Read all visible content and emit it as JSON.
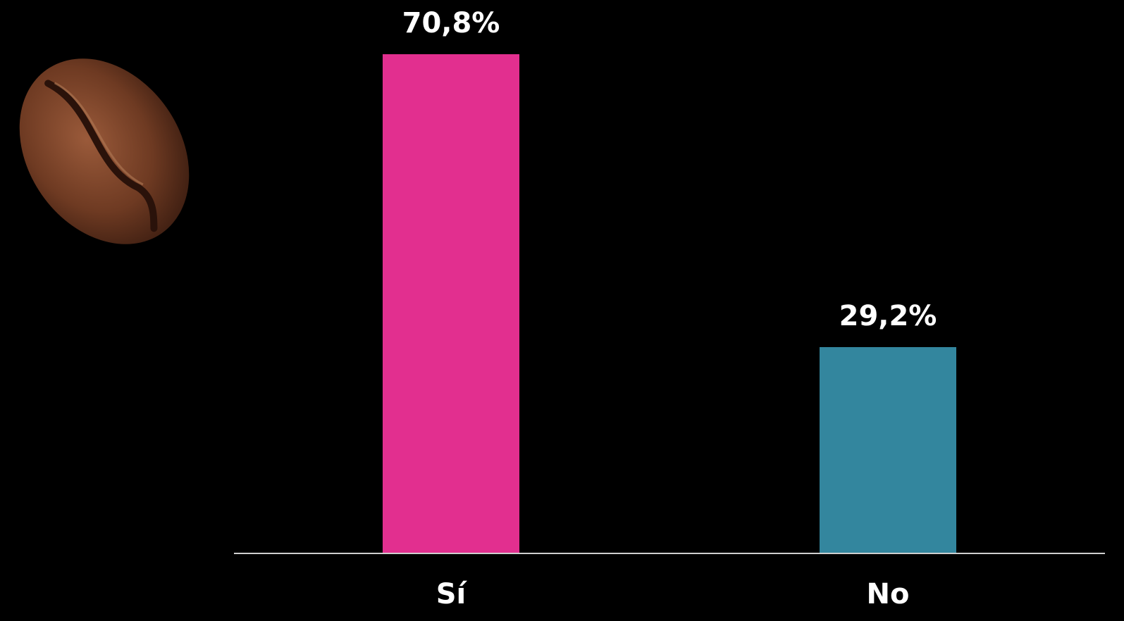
{
  "chart_data": {
    "type": "bar",
    "categories": [
      "Sí",
      "No"
    ],
    "values": [
      70.8,
      29.2
    ],
    "value_labels": [
      "70,8%",
      "29,2%"
    ],
    "colors": [
      "#e22f8f",
      "#33869e"
    ]
  }
}
